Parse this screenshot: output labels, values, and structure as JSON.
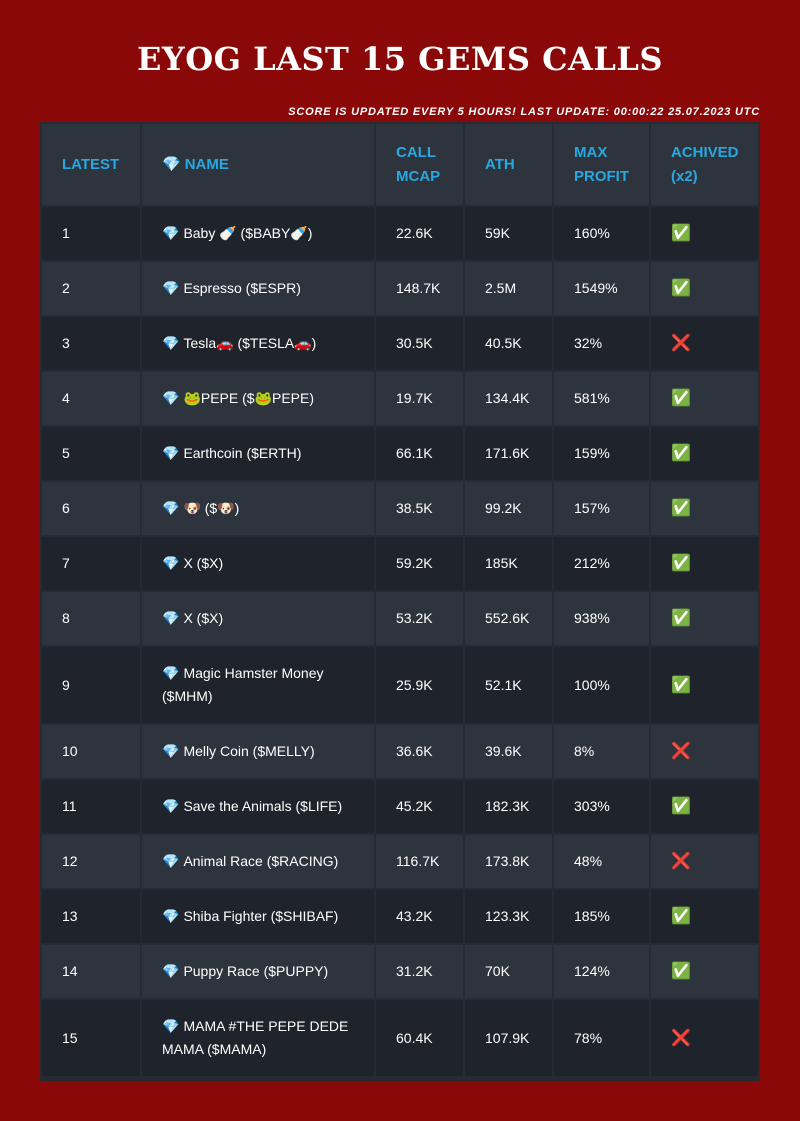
{
  "title": "EYOG LAST 15 GEMS CALLS",
  "subtitle": "SCORE IS UPDATED EVERY 5 HOURS! LAST UPDATE: 00:00:22 25.07.2023 UTC",
  "columns": {
    "latest": "LATEST",
    "name_icon": "💎",
    "name": "NAME",
    "call_mcap": "CALL MCAP",
    "ath": "ATH",
    "max_profit": "MAX PROFIT",
    "achieved": "ACHIVED (x2)"
  },
  "gem_icon": "💎",
  "status_icons": {
    "yes": "✅",
    "no": "❌"
  },
  "colors": {
    "background": "#8b0808",
    "header_text": "#28a8e0",
    "row_dark": "#1f232b",
    "row_light": "#2e343d"
  },
  "rows": [
    {
      "latest": "1",
      "name": "Baby 🍼 ($BABY🍼)",
      "call_mcap": "22.6K",
      "ath": "59K",
      "max_profit": "160%",
      "achieved": "✅"
    },
    {
      "latest": "2",
      "name": "Espresso ($ESPR)",
      "call_mcap": "148.7K",
      "ath": "2.5M",
      "max_profit": "1549%",
      "achieved": "✅"
    },
    {
      "latest": "3",
      "name": "Tesla🚗 ($TESLA🚗)",
      "call_mcap": "30.5K",
      "ath": "40.5K",
      "max_profit": "32%",
      "achieved": "❌"
    },
    {
      "latest": "4",
      "name": "🐸PEPE ($🐸PEPE)",
      "call_mcap": "19.7K",
      "ath": "134.4K",
      "max_profit": "581%",
      "achieved": "✅"
    },
    {
      "latest": "5",
      "name": "Earthcoin ($ERTH)",
      "call_mcap": "66.1K",
      "ath": "171.6K",
      "max_profit": "159%",
      "achieved": "✅"
    },
    {
      "latest": "6",
      "name": "🐶 ($🐶)",
      "call_mcap": "38.5K",
      "ath": "99.2K",
      "max_profit": "157%",
      "achieved": "✅"
    },
    {
      "latest": "7",
      "name": "X ($X)",
      "call_mcap": "59.2K",
      "ath": "185K",
      "max_profit": "212%",
      "achieved": "✅"
    },
    {
      "latest": "8",
      "name": "X ($X)",
      "call_mcap": "53.2K",
      "ath": "552.6K",
      "max_profit": "938%",
      "achieved": "✅"
    },
    {
      "latest": "9",
      "name": "Magic Hamster Money ($MHM)",
      "call_mcap": "25.9K",
      "ath": "52.1K",
      "max_profit": "100%",
      "achieved": "✅"
    },
    {
      "latest": "10",
      "name": "Melly Coin ($MELLY)",
      "call_mcap": "36.6K",
      "ath": "39.6K",
      "max_profit": "8%",
      "achieved": "❌"
    },
    {
      "latest": "11",
      "name": "Save the Animals ($LIFE)",
      "call_mcap": "45.2K",
      "ath": "182.3K",
      "max_profit": "303%",
      "achieved": "✅"
    },
    {
      "latest": "12",
      "name": "Animal Race ($RACING)",
      "call_mcap": "116.7K",
      "ath": "173.8K",
      "max_profit": "48%",
      "achieved": "❌"
    },
    {
      "latest": "13",
      "name": "Shiba Fighter ($SHIBAF)",
      "call_mcap": "43.2K",
      "ath": "123.3K",
      "max_profit": "185%",
      "achieved": "✅"
    },
    {
      "latest": "14",
      "name": "Puppy Race ($PUPPY)",
      "call_mcap": "31.2K",
      "ath": "70K",
      "max_profit": "124%",
      "achieved": "✅"
    },
    {
      "latest": "15",
      "name": "MAMA #THE PEPE DEDE MAMA ($MAMA)",
      "call_mcap": "60.4K",
      "ath": "107.9K",
      "max_profit": "78%",
      "achieved": "❌"
    }
  ]
}
